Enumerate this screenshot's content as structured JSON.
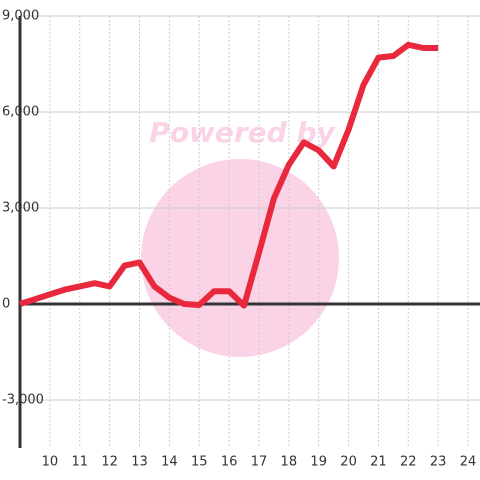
{
  "chart_data": {
    "type": "line",
    "watermark": "Powered by",
    "x": [
      9,
      9.5,
      10,
      10.5,
      11,
      11.5,
      12,
      12.5,
      13,
      13.5,
      14,
      14.5,
      15,
      15.5,
      16,
      16.5,
      17,
      17.5,
      18,
      18.5,
      19,
      19.5,
      20,
      20.5,
      21,
      21.5,
      22,
      22.5,
      23
    ],
    "series": [
      {
        "color": "#e8283c",
        "values": [
          0,
          150,
          300,
          450,
          550,
          650,
          550,
          1200,
          1300,
          550,
          200,
          0,
          -30,
          400,
          400,
          -50,
          1600,
          3300,
          4350,
          5050,
          4800,
          4300,
          5450,
          6850,
          7700,
          7750,
          8100,
          8000,
          8000
        ]
      }
    ],
    "xlim": [
      9,
      24.4
    ],
    "xticks": [
      10,
      11,
      12,
      13,
      14,
      15,
      16,
      17,
      18,
      19,
      20,
      21,
      22,
      23,
      24
    ],
    "ylim": [
      -4500,
      9000
    ],
    "yticks": [
      {
        "value": -3000,
        "label": "-3,000"
      },
      0,
      {
        "value": 3000,
        "label": "3,000"
      },
      {
        "value": 6000,
        "label": "6,000"
      },
      {
        "value": 9000,
        "label": "9,000"
      }
    ],
    "grid": true
  }
}
